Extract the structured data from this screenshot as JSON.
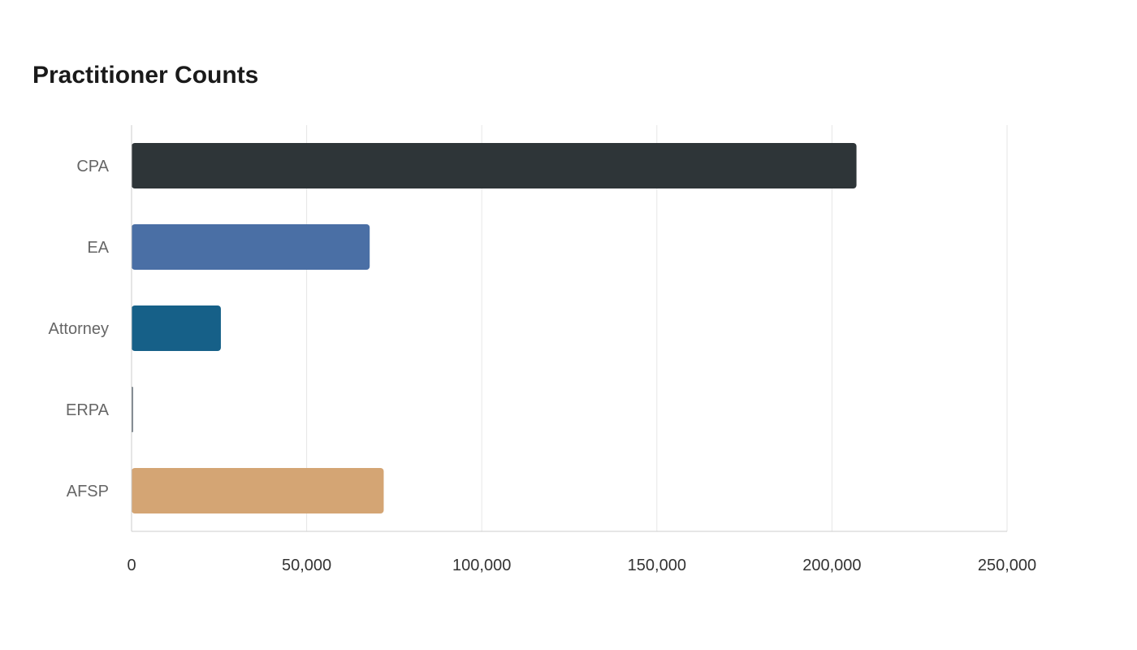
{
  "chart_data": {
    "type": "bar",
    "orientation": "horizontal",
    "title": "Practitioner Counts",
    "xlabel": "",
    "ylabel": "",
    "categories": [
      "CPA",
      "EA",
      "Attorney",
      "ERPA",
      "AFSP"
    ],
    "values": [
      207000,
      68000,
      25500,
      400,
      72000
    ],
    "colors": [
      "#2e3538",
      "#4a6fa5",
      "#166088",
      "#4f5b66",
      "#d4a574"
    ],
    "xlim": [
      0,
      250000
    ],
    "xticks": [
      0,
      50000,
      100000,
      150000,
      200000,
      250000
    ],
    "xtick_labels": [
      "0",
      "50,000",
      "100,000",
      "150,000",
      "200,000",
      "250,000"
    ],
    "grid": "vertical",
    "legend": "none"
  }
}
